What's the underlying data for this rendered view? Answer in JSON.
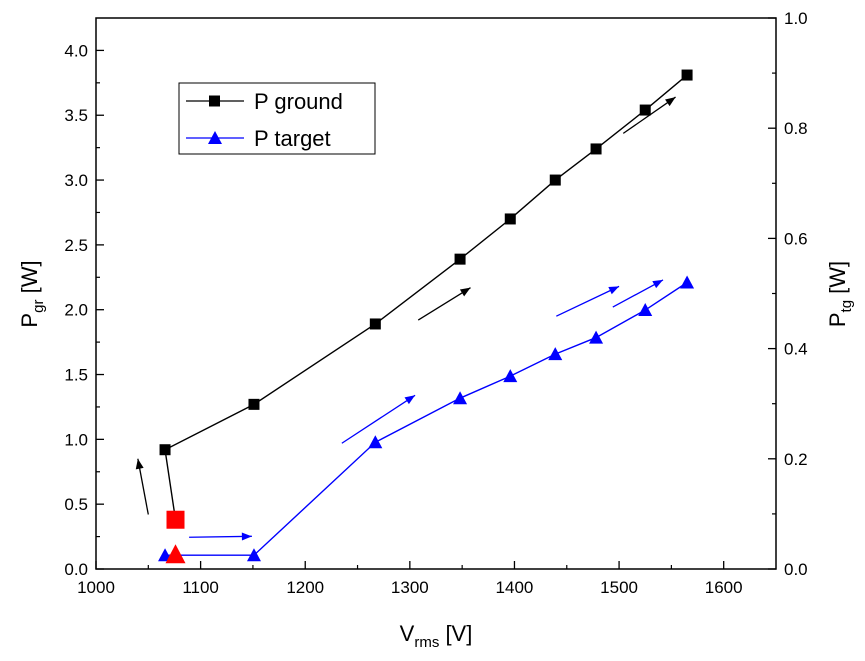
{
  "chart_data": {
    "type": "line",
    "x": {
      "label": "V",
      "label_sub": "rms",
      "label_unit": " [V]",
      "min": 1000,
      "max": 1650,
      "ticks": [
        1000,
        1100,
        1200,
        1300,
        1400,
        1500,
        1600
      ],
      "tick_labels": [
        "1000",
        "1100",
        "1200",
        "1300",
        "1400",
        "1500",
        "1600"
      ]
    },
    "y_left": {
      "label": "P",
      "label_sub": "gr",
      "label_unit": " [W]",
      "min": 0,
      "max": 4.25,
      "ticks": [
        0,
        0.5,
        1,
        1.5,
        2,
        2.5,
        3,
        3.5,
        4
      ],
      "tick_labels": [
        "0.0",
        "0.5",
        "1.0",
        "1.5",
        "2.0",
        "2.5",
        "3.0",
        "3.5",
        "4.0"
      ]
    },
    "y_right": {
      "label": "P",
      "label_sub": "tg",
      "label_unit": " [W]",
      "min": 0,
      "max": 1.0,
      "ticks": [
        0,
        0.2,
        0.4,
        0.6,
        0.8,
        1.0
      ],
      "tick_labels": [
        "0.0",
        "0.2",
        "0.4",
        "0.6",
        "0.8",
        "1.0"
      ]
    },
    "series": [
      {
        "name": "P ground",
        "axis": "left",
        "color": "#000000",
        "marker": "square",
        "points": [
          [
            1076,
            0.38
          ],
          [
            1066,
            0.92
          ],
          [
            1151,
            1.27
          ],
          [
            1267,
            1.89
          ],
          [
            1348,
            2.39
          ],
          [
            1396,
            2.7
          ],
          [
            1439,
            3.0
          ],
          [
            1478,
            3.24
          ],
          [
            1525,
            3.54
          ],
          [
            1565,
            3.81
          ]
        ],
        "highlight": {
          "x": 1076,
          "y": 0.38,
          "color": "#ff0000"
        }
      },
      {
        "name": "P target",
        "axis": "right",
        "color": "#0000ff",
        "marker": "triangle",
        "points": [
          [
            1076,
            0.025
          ],
          [
            1066,
            0.025
          ],
          [
            1151,
            0.025
          ],
          [
            1267,
            0.23
          ],
          [
            1348,
            0.31
          ],
          [
            1396,
            0.35
          ],
          [
            1439,
            0.39
          ],
          [
            1478,
            0.42
          ],
          [
            1525,
            0.47
          ],
          [
            1565,
            0.52
          ]
        ],
        "highlight": {
          "x": 1076,
          "y": 0.025,
          "color": "#ff0000"
        }
      }
    ],
    "legend": {
      "position": "top-left",
      "entries": [
        {
          "label": "P ground",
          "color": "#000000",
          "marker": "square"
        },
        {
          "label": "P target",
          "color": "#0000ff",
          "marker": "triangle"
        }
      ]
    },
    "arrows": [
      {
        "color": "#000000",
        "from": [
          1050,
          0.42
        ],
        "to": [
          1040,
          0.85
        ]
      },
      {
        "color": "#000000",
        "from": [
          1308,
          1.92
        ],
        "to": [
          1358,
          2.17
        ]
      },
      {
        "color": "#000000",
        "from": [
          1504,
          3.36
        ],
        "to": [
          1554,
          3.64
        ]
      },
      {
        "color": "#0000ff",
        "from": [
          1089,
          0.245
        ],
        "to": [
          1149,
          0.252
        ]
      },
      {
        "color": "#0000ff",
        "from": [
          1235,
          0.97
        ],
        "to": [
          1305,
          1.34
        ]
      },
      {
        "color": "#0000ff",
        "from": [
          1440,
          1.95
        ],
        "to": [
          1500,
          2.18
        ]
      },
      {
        "color": "#0000ff",
        "from": [
          1494,
          2.02
        ],
        "to": [
          1542,
          2.23
        ]
      }
    ]
  }
}
